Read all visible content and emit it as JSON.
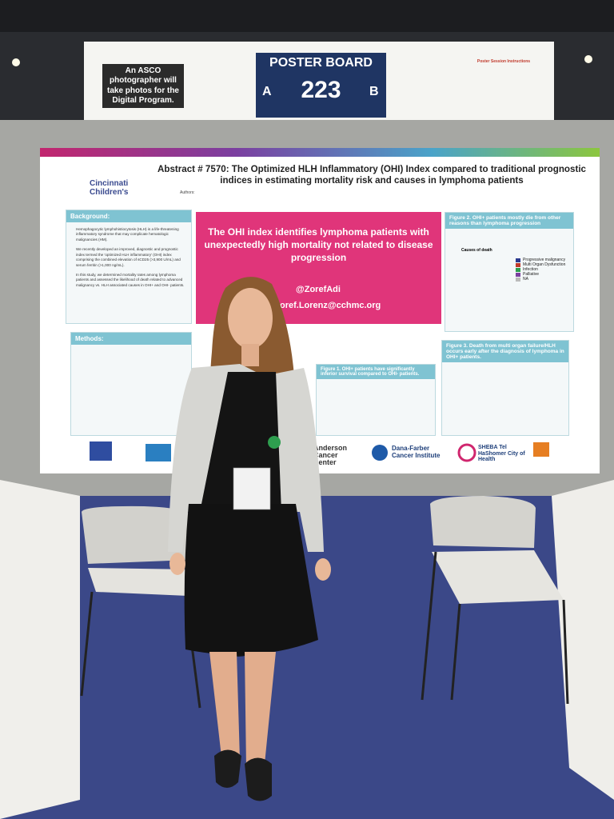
{
  "sign": {
    "notice": "An ASCO photographer will take photos for the Digital Program.",
    "label": "POSTER BOARD",
    "side_a": "A",
    "board_number": "223",
    "side_b": "B",
    "instructions_title": "Poster Session Instructions"
  },
  "poster": {
    "title": "Abstract # 7570: The Optimized HLH Inflammatory (OHI) Index compared to traditional prognostic indices in estimating mortality risk and causes in lymphoma patients",
    "logo": "Cincinnati Children's",
    "authors_label": "Authors:",
    "headline": "The OHI index identifies lymphoma patients with unexpectedly high mortality not related to disease progression",
    "twitter": "@ZorefAdi",
    "email": "oref.Lorenz@cchmc.org",
    "background": {
      "heading": "Background:",
      "bullets": [
        "Hemophagocytic lymphohistiocytosis (HLH) is a life-threatening inflammatory syndrome that may complicate hematologic malignancies (HM).",
        "We recently developed an improved, diagnostic and prognostic index termed the 'optimized HLH inflammatory' (OHI) index comprising the combined elevation of sCD25 (>3,900 U/mL) and serum ferritin (>1,000 ng/mL).",
        "In this study, we determined mortality rates among lymphoma patients and assessed the likelihood of death related to advanced malignancy vs. HLH associated causes in OHI+ and OHI- patients."
      ]
    },
    "methods": {
      "heading": "Methods:"
    },
    "figure1": "Figure 1. OHI+ patients have significantly inferior survival compared to OHI- patients.",
    "figure2": {
      "heading": "Figure 2. OHI+ patients mostly die from other reasons than lymphoma progression",
      "chart_title": "Causes of death",
      "legend": [
        "Progressive malignancy",
        "Multi Organ Dysfunction",
        "Infection",
        "Palliative",
        "NA"
      ]
    },
    "figure3": "Figure 3. Death from multi organ failure/HLH occurs early after the diagnosis of lymphoma in OHI+ patients.",
    "footer_logos": [
      "Anderson Cancer Center",
      "Dana-Farber Cancer Institute",
      "SHEBA Tel HaShomer City of Health"
    ]
  }
}
